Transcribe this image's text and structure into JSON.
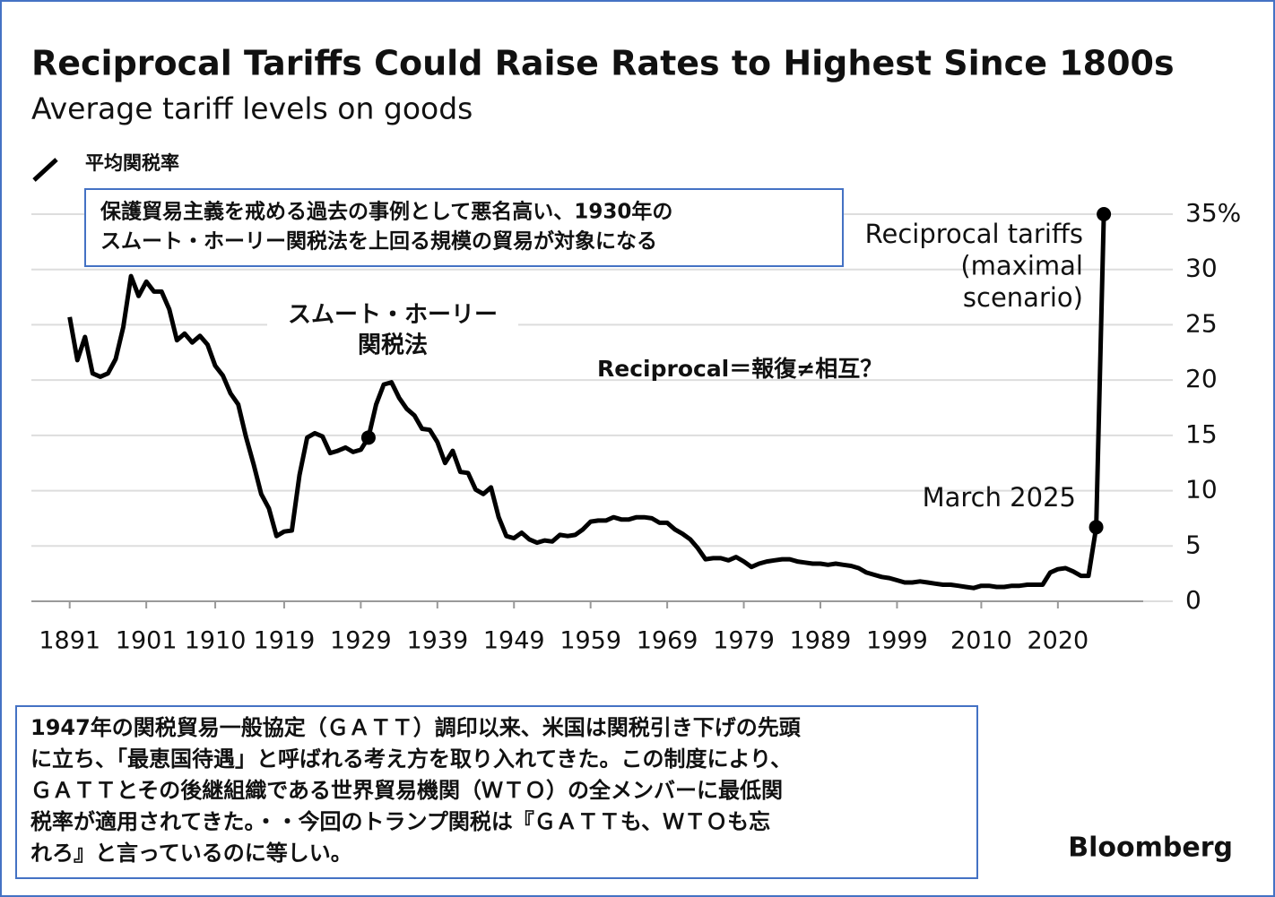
{
  "chart_data": {
    "type": "line",
    "title": "Reciprocal Tariffs Could Raise Rates to Highest Since 1800s",
    "subtitle": "Average tariff levels on goods",
    "x": [
      1891,
      1892,
      1893,
      1894,
      1895,
      1896,
      1897,
      1898,
      1899,
      1900,
      1901,
      1902,
      1903,
      1904,
      1905,
      1906,
      1907,
      1908,
      1909,
      1910,
      1911,
      1912,
      1913,
      1914,
      1915,
      1916,
      1917,
      1918,
      1919,
      1920,
      1921,
      1922,
      1923,
      1924,
      1925,
      1926,
      1927,
      1928,
      1929,
      1930,
      1931,
      1932,
      1933,
      1934,
      1935,
      1936,
      1937,
      1938,
      1939,
      1940,
      1941,
      1942,
      1943,
      1944,
      1945,
      1946,
      1947,
      1948,
      1949,
      1950,
      1951,
      1952,
      1953,
      1954,
      1955,
      1956,
      1957,
      1958,
      1959,
      1960,
      1961,
      1962,
      1963,
      1964,
      1965,
      1966,
      1967,
      1968,
      1969,
      1970,
      1971,
      1972,
      1973,
      1974,
      1975,
      1976,
      1977,
      1978,
      1979,
      1980,
      1981,
      1982,
      1983,
      1984,
      1985,
      1986,
      1987,
      1988,
      1989,
      1990,
      1991,
      1992,
      1993,
      1994,
      1995,
      1996,
      1997,
      1998,
      1999,
      2000,
      2001,
      2002,
      2003,
      2004,
      2005,
      2006,
      2007,
      2008,
      2009,
      2010,
      2011,
      2012,
      2013,
      2014,
      2015,
      2016,
      2017,
      2018,
      2019,
      2020,
      2021,
      2022,
      2023,
      2024,
      2025,
      2026
    ],
    "series": [
      {
        "name": "平均関税率",
        "color": "#000000",
        "values": [
          25.7,
          21.8,
          23.9,
          20.6,
          20.3,
          20.6,
          21.9,
          24.8,
          29.4,
          27.6,
          28.9,
          28.0,
          28.0,
          26.4,
          23.6,
          24.2,
          23.4,
          24.0,
          23.2,
          21.3,
          20.4,
          18.8,
          17.8,
          14.9,
          12.4,
          9.7,
          8.4,
          5.9,
          6.3,
          6.4,
          11.4,
          14.8,
          15.2,
          14.9,
          13.4,
          13.6,
          13.9,
          13.5,
          13.7,
          14.8,
          17.8,
          19.6,
          19.8,
          18.4,
          17.4,
          16.8,
          15.6,
          15.5,
          14.4,
          12.5,
          13.6,
          11.7,
          11.6,
          10.1,
          9.7,
          10.3,
          7.6,
          5.9,
          5.7,
          6.2,
          5.6,
          5.3,
          5.5,
          5.4,
          6.0,
          5.9,
          6.0,
          6.5,
          7.2,
          7.3,
          7.3,
          7.6,
          7.4,
          7.4,
          7.6,
          7.6,
          7.5,
          7.1,
          7.1,
          6.5,
          6.1,
          5.6,
          4.8,
          3.8,
          3.9,
          3.9,
          3.7,
          4.0,
          3.6,
          3.1,
          3.4,
          3.6,
          3.7,
          3.8,
          3.8,
          3.6,
          3.5,
          3.4,
          3.4,
          3.3,
          3.4,
          3.3,
          3.2,
          3.0,
          2.6,
          2.4,
          2.2,
          2.1,
          1.9,
          1.7,
          1.7,
          1.8,
          1.7,
          1.6,
          1.5,
          1.5,
          1.4,
          1.3,
          1.2,
          1.4,
          1.4,
          1.3,
          1.3,
          1.4,
          1.4,
          1.5,
          1.5,
          1.5,
          2.6,
          2.9,
          3.0,
          2.7,
          2.3,
          2.3,
          6.7,
          35
        ]
      }
    ],
    "markers": [
      39,
      134,
      135
    ],
    "xlim": [
      1886,
      2035
    ],
    "xticks": [
      1891,
      1901,
      1910,
      1919,
      1929,
      1939,
      1949,
      1959,
      1969,
      1979,
      1989,
      1999,
      2010,
      2020
    ],
    "ylim": [
      0,
      35
    ],
    "yticks": [
      0,
      5,
      10,
      15,
      20,
      25,
      30,
      {
        "value": 35,
        "label": "35%"
      }
    ],
    "grid": true,
    "annotations": [
      {
        "lines": [
          "Reciprocal tariffs",
          "(maximal",
          "scenario)"
        ]
      },
      {
        "lines": [
          "March 2025"
        ]
      },
      {
        "lines": [
          "スムート・ホーリー",
          "関税法"
        ]
      },
      {
        "lines": [
          "Reciprocal＝報復≠相互？"
        ],
        "color": "#e8160c"
      }
    ],
    "notes": [
      {
        "lines": [
          "保護貿易主義を戒める過去の事例として悪名高い、1930年の",
          "スムート・ホーリー関税法を上回る規模の貿易が対象になる"
        ]
      },
      {
        "lines": [
          "1947年の関税貿易一般協定（ＧＡＴＴ）調印以来、米国は関税引き下げの先頭",
          "に立ち、「最恵国待遇」と呼ばれる考え方を取り入れてきた。この制度により、",
          "ＧＡＴＴとその後継組織である世界貿易機関（ＷＴＯ）の全メンバーに最低関",
          "税率が適用されてきた。・・今回のトランプ関税は『ＧＡＴＴも、ＷＴＯも忘",
          "れろ』と言っているのに等しい。"
        ]
      }
    ],
    "source": "Bloomberg"
  }
}
